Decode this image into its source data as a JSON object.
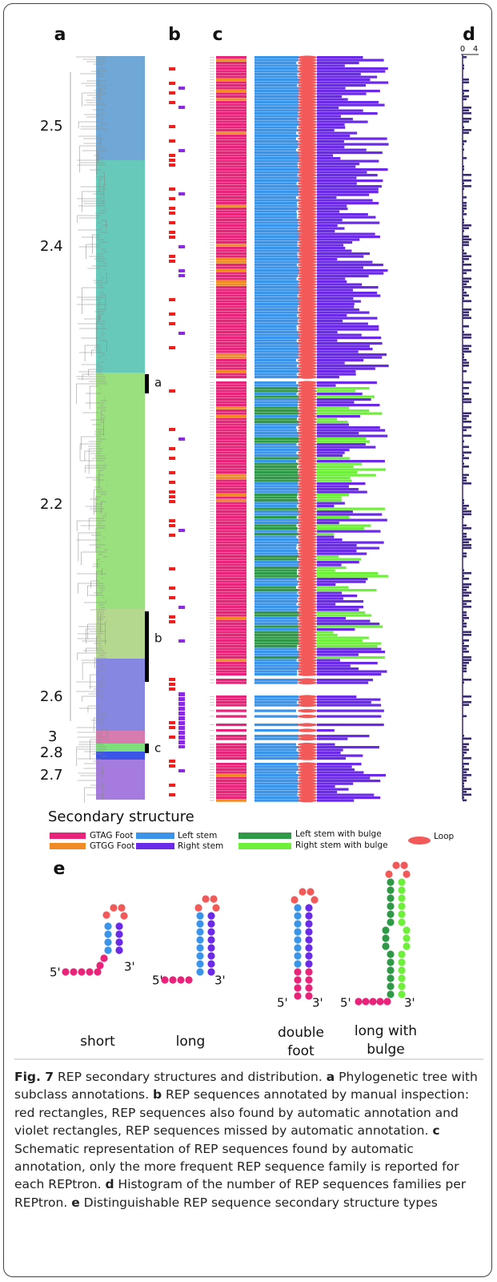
{
  "panels": {
    "a": "a",
    "b": "b",
    "c": "c",
    "d": "d",
    "e": "e"
  },
  "subclasses": [
    "2.5",
    "2.4",
    "2.2",
    "2.6",
    "3",
    "2.8",
    "2.7"
  ],
  "brackets": [
    "a",
    "b",
    "c"
  ],
  "histogram_ticks": [
    "0",
    "4"
  ],
  "legend": {
    "title": "Secondary structure",
    "entries": [
      "GTAG Foot",
      "GTGG Foot",
      "Left stem",
      "Right stem",
      "Left stem with bulge",
      "Right stem with bulge",
      "Loop"
    ]
  },
  "structures": {
    "five_prime": "5'",
    "three_prime": "3'",
    "labels": [
      "short",
      "long",
      "double",
      "foot",
      "long with",
      "bulge"
    ]
  },
  "caption": [
    {
      "bold": "Fig. 7"
    },
    {
      "text": " REP secondary structures and distribution. "
    },
    {
      "bold": "a"
    },
    {
      "text": " Phylogenetic tree with subclass annotations. "
    },
    {
      "bold": "b"
    },
    {
      "text": " REP sequences annotated by manual inspection: red rectangles, REP sequences also found by automatic annotation and violet rectangles, REP sequences missed by automatic annotation. "
    },
    {
      "bold": "c"
    },
    {
      "text": " Schematic representation of REP sequences found by automatic annotation, only the more frequent REP sequence family is reported for each REPtron. "
    },
    {
      "bold": "d"
    },
    {
      "text": " Histogram of the number of REP sequences families per REPtron. "
    },
    {
      "bold": "e"
    },
    {
      "text": " Distinguishable REP sequence secondary structure types"
    }
  ]
}
